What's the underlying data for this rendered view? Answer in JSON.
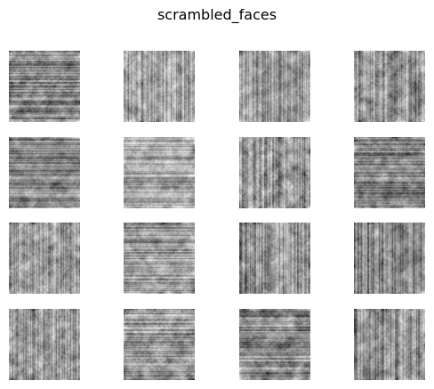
{
  "figure": {
    "title": "scrambled_faces",
    "rows": 4,
    "cols": 4,
    "colormap": "gray"
  },
  "panels": [
    {
      "id": 1,
      "seed": 11
    },
    {
      "id": 2,
      "seed": 23
    },
    {
      "id": 3,
      "seed": 37
    },
    {
      "id": 4,
      "seed": 41
    },
    {
      "id": 5,
      "seed": 53
    },
    {
      "id": 6,
      "seed": 67
    },
    {
      "id": 7,
      "seed": 71
    },
    {
      "id": 8,
      "seed": 83
    },
    {
      "id": 9,
      "seed": 97
    },
    {
      "id": 10,
      "seed": 101
    },
    {
      "id": 11,
      "seed": 113
    },
    {
      "id": 12,
      "seed": 127
    },
    {
      "id": 13,
      "seed": 131
    },
    {
      "id": 14,
      "seed": 149
    },
    {
      "id": 15,
      "seed": 157
    },
    {
      "id": 16,
      "seed": 163
    }
  ]
}
